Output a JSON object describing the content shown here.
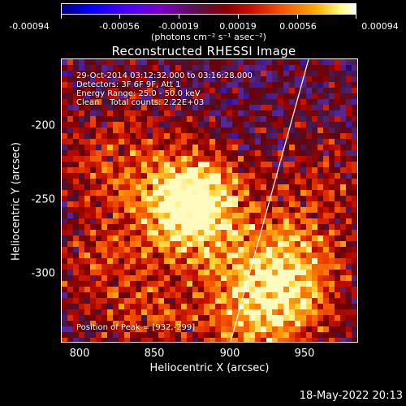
{
  "colorbar": {
    "ticks": [
      "-0.00094",
      "-0.00056",
      "-0.00019",
      "0.00019",
      "0.00056",
      "0.00094"
    ],
    "units": "(photons cm⁻² s⁻¹ asec⁻²)"
  },
  "title": "Reconstructed RHESSI Image",
  "info": {
    "time": "29-Oct-2014 03:12:32.000 to 03:16:28.000",
    "detectors": "Detectors: 3F 6F 9F, Att 1",
    "energy": "Energy Range: 25.0 - 50.0 keV",
    "clean": "Clean    Total counts: 2.22E+03",
    "peak": "Position of Peak = [932,-299]"
  },
  "axes": {
    "xlabel": "Heliocentric X (arcsec)",
    "ylabel": "Heliocentric Y (arcsec)",
    "xticks": [
      "800",
      "850",
      "900",
      "950"
    ],
    "yticks": [
      "-200",
      "-250",
      "-300"
    ]
  },
  "footer": "18-May-2022 20:13"
}
